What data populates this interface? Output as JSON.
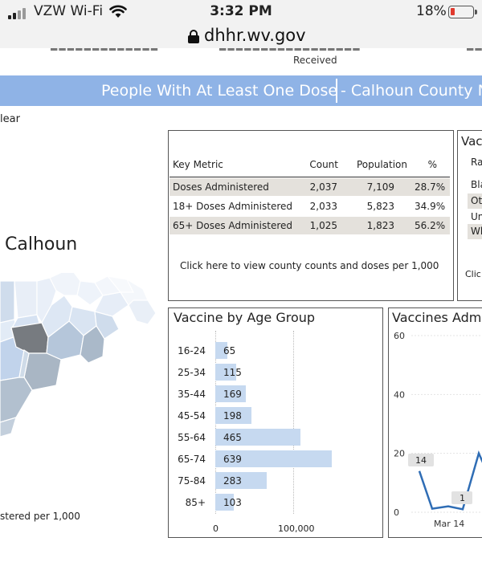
{
  "status_bar": {
    "carrier": "VZW Wi-Fi",
    "time": "3:32 PM",
    "battery": "18%",
    "battery_level": 0.18,
    "battery_color": "#e03a2e"
  },
  "url_bar": {
    "url": "dhhr.wv.gov"
  },
  "page": {
    "received_label": "Received",
    "banner_title": "People With At Least One Dose",
    "banner_county": "- Calhoun County N",
    "clear_label": "lear",
    "county_name": "Calhoun",
    "per_1000_label": "stered per 1,000",
    "accent_color": "#8fb3e6"
  },
  "key_metrics": {
    "headers": [
      "Key Metric",
      "Count",
      "Population",
      "%"
    ],
    "rows": [
      {
        "metric": "Doses Administered",
        "count": "2,037",
        "population": "7,109",
        "pct": "28.7%"
      },
      {
        "metric": "18+ Doses Administered",
        "count": "2,033",
        "population": "5,823",
        "pct": "34.9%"
      },
      {
        "metric": "65+ Doses Administered",
        "count": "1,025",
        "population": "1,823",
        "pct": "56.2%"
      }
    ],
    "link_text": "Click here to view county counts and doses per 1,000"
  },
  "vaccine_card": {
    "title": "Vacc",
    "header": "Ra",
    "rows": [
      "Bla",
      "Oth",
      "Un",
      "Wh"
    ],
    "link_text": "Clic"
  },
  "chart_data": [
    {
      "type": "bar",
      "orientation": "horizontal",
      "title": "Vaccine by Age Group",
      "categories": [
        "16-24",
        "25-34",
        "35-44",
        "45-54",
        "55-64",
        "65-74",
        "75-84",
        "85+"
      ],
      "values": [
        65,
        115,
        169,
        198,
        465,
        639,
        283,
        103
      ],
      "xticks": [
        "0",
        "100,000"
      ],
      "bar_color": "#c6d9f0"
    },
    {
      "type": "line",
      "title": "Vaccines Admi",
      "yticks": [
        0,
        20,
        40,
        60
      ],
      "ylim": [
        0,
        60
      ],
      "xtick_labels": [
        "Mar 14"
      ],
      "data_labels": [
        "14",
        "1"
      ],
      "line_color": "#2f6db5"
    }
  ]
}
